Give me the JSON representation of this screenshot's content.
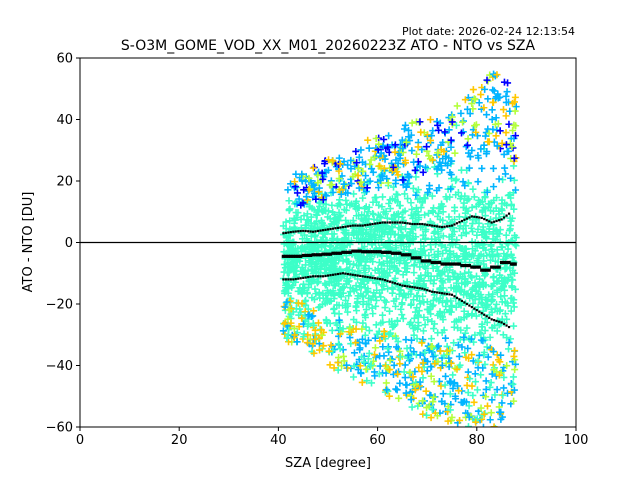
{
  "chart_data": {
    "type": "scatter",
    "plot_date": "Plot date: 2026-02-24 12:13:54",
    "title": "S-O3M_GOME_VOD_XX_M01_20260223Z ATO - NTO vs SZA",
    "xlabel": "SZA [degree]",
    "ylabel": "ATO - NTO [DU]",
    "xlim": [
      0,
      100
    ],
    "ylim": [
      -60,
      60
    ],
    "xticks": [
      "0",
      "20",
      "40",
      "60",
      "80",
      "100"
    ],
    "yticks": [
      "−60",
      "−40",
      "−20",
      "0",
      "20",
      "40",
      "60"
    ],
    "reference_line_y": 0,
    "colors": {
      "density_low": "#0000ff",
      "density_mid_low": "#00b4ff",
      "density_mid": "#3cffc8",
      "density_mid_high": "#b4ff3c",
      "density_high": "#ffc800",
      "stats": "#000000"
    },
    "scatter_envelope": {
      "sza": [
        41,
        45,
        50,
        55,
        60,
        65,
        70,
        75,
        80,
        85,
        88
      ],
      "upper": [
        20,
        22,
        26,
        30,
        33,
        36,
        40,
        44,
        50,
        55,
        45
      ],
      "lower": [
        -30,
        -33,
        -38,
        -42,
        -46,
        -50,
        -55,
        -58,
        -58,
        -58,
        -50
      ]
    },
    "series": [
      {
        "name": "mean",
        "x": [
          41,
          43,
          45,
          47,
          49,
          51,
          53,
          55,
          57,
          59,
          61,
          63,
          65,
          67,
          69,
          71,
          73,
          75,
          77,
          79,
          81,
          83,
          85,
          87,
          88
        ],
        "y": [
          -4.5,
          -4.5,
          -4.2,
          -4,
          -3.8,
          -3.5,
          -3.2,
          -2.8,
          -3,
          -3,
          -3.2,
          -3.5,
          -4,
          -5,
          -6,
          -6.5,
          -7,
          -7,
          -7.5,
          -8,
          -9,
          -8,
          -6.5,
          -7,
          -2
        ]
      },
      {
        "name": "mean_plus_sigma",
        "x": [
          41,
          43,
          45,
          47,
          49,
          51,
          53,
          55,
          57,
          59,
          61,
          63,
          65,
          67,
          69,
          71,
          73,
          75,
          77,
          79,
          81,
          83,
          85,
          87
        ],
        "y": [
          3,
          3.5,
          3.8,
          3.5,
          4,
          4.5,
          5,
          5.5,
          5.5,
          6,
          6.5,
          6.5,
          6.5,
          6,
          6,
          5.5,
          5,
          5.5,
          7,
          8.5,
          8,
          6.5,
          7.5,
          10
        ]
      },
      {
        "name": "mean_minus_sigma",
        "x": [
          41,
          43,
          45,
          47,
          49,
          51,
          53,
          55,
          57,
          59,
          61,
          63,
          65,
          67,
          69,
          71,
          73,
          75,
          77,
          79,
          81,
          83,
          85,
          87
        ],
        "y": [
          -12,
          -12,
          -11.5,
          -11,
          -11,
          -10.5,
          -10,
          -10.5,
          -11,
          -11.5,
          -12,
          -13,
          -14,
          -14.5,
          -15,
          -16,
          -16.5,
          -17,
          -19,
          -21,
          -23,
          -25,
          -26,
          -28
        ]
      }
    ]
  }
}
